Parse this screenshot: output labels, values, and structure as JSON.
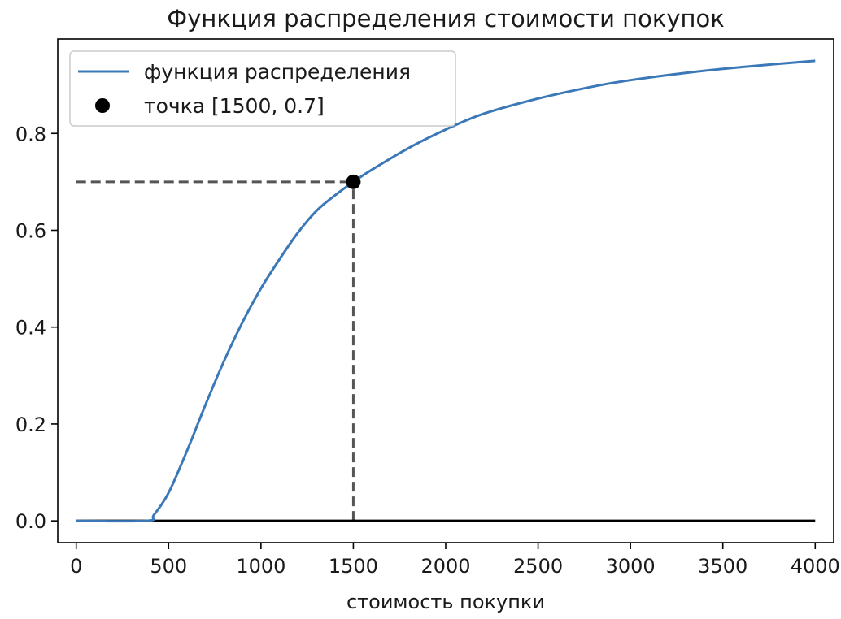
{
  "chart_data": {
    "type": "line",
    "title": "Функция распределения стоимости покупок",
    "xlabel": "стоимость покупки",
    "ylabel": "",
    "xlim": [
      -100,
      4100
    ],
    "ylim": [
      -0.045,
      0.995
    ],
    "xticks": [
      0,
      500,
      1000,
      1500,
      2000,
      2500,
      3000,
      3500,
      4000
    ],
    "xtick_labels": [
      "0",
      "500",
      "1000",
      "1500",
      "2000",
      "2500",
      "3000",
      "3500",
      "4000"
    ],
    "yticks": [
      0.0,
      0.2,
      0.4,
      0.6,
      0.8
    ],
    "ytick_labels": [
      "0.0",
      "0.2",
      "0.4",
      "0.6",
      "0.8"
    ],
    "grid": false,
    "legend": {
      "placement": "upper-left",
      "entries": [
        "функция распределения",
        "точка [1500, 0.7]"
      ]
    },
    "series": [
      {
        "name": "функция распределения",
        "kind": "line",
        "color": "#3a78b8",
        "x": [
          0,
          380,
          420,
          500,
          600,
          700,
          800,
          900,
          1000,
          1100,
          1200,
          1300,
          1400,
          1500,
          1600,
          1800,
          2000,
          2200,
          2500,
          2800,
          3000,
          3300,
          3600,
          4000
        ],
        "y": [
          0,
          0,
          0.012,
          0.058,
          0.145,
          0.24,
          0.33,
          0.41,
          0.48,
          0.54,
          0.595,
          0.64,
          0.672,
          0.7,
          0.725,
          0.77,
          0.808,
          0.84,
          0.872,
          0.897,
          0.91,
          0.925,
          0.937,
          0.95
        ]
      },
      {
        "name": "точка [1500, 0.7]",
        "kind": "point",
        "color": "#000000",
        "x": [
          1500
        ],
        "y": [
          0.7
        ]
      }
    ],
    "reference_lines": [
      {
        "kind": "hline",
        "y": 0.7,
        "x_range": [
          0,
          1500
        ],
        "style": "dashed",
        "color": "#555555"
      },
      {
        "kind": "vline",
        "x": 1500,
        "y_range": [
          0,
          0.7
        ],
        "style": "dashed",
        "color": "#555555"
      },
      {
        "kind": "hline",
        "y": 0,
        "x_range": [
          0,
          4000
        ],
        "style": "solid",
        "color": "#000000"
      }
    ]
  }
}
